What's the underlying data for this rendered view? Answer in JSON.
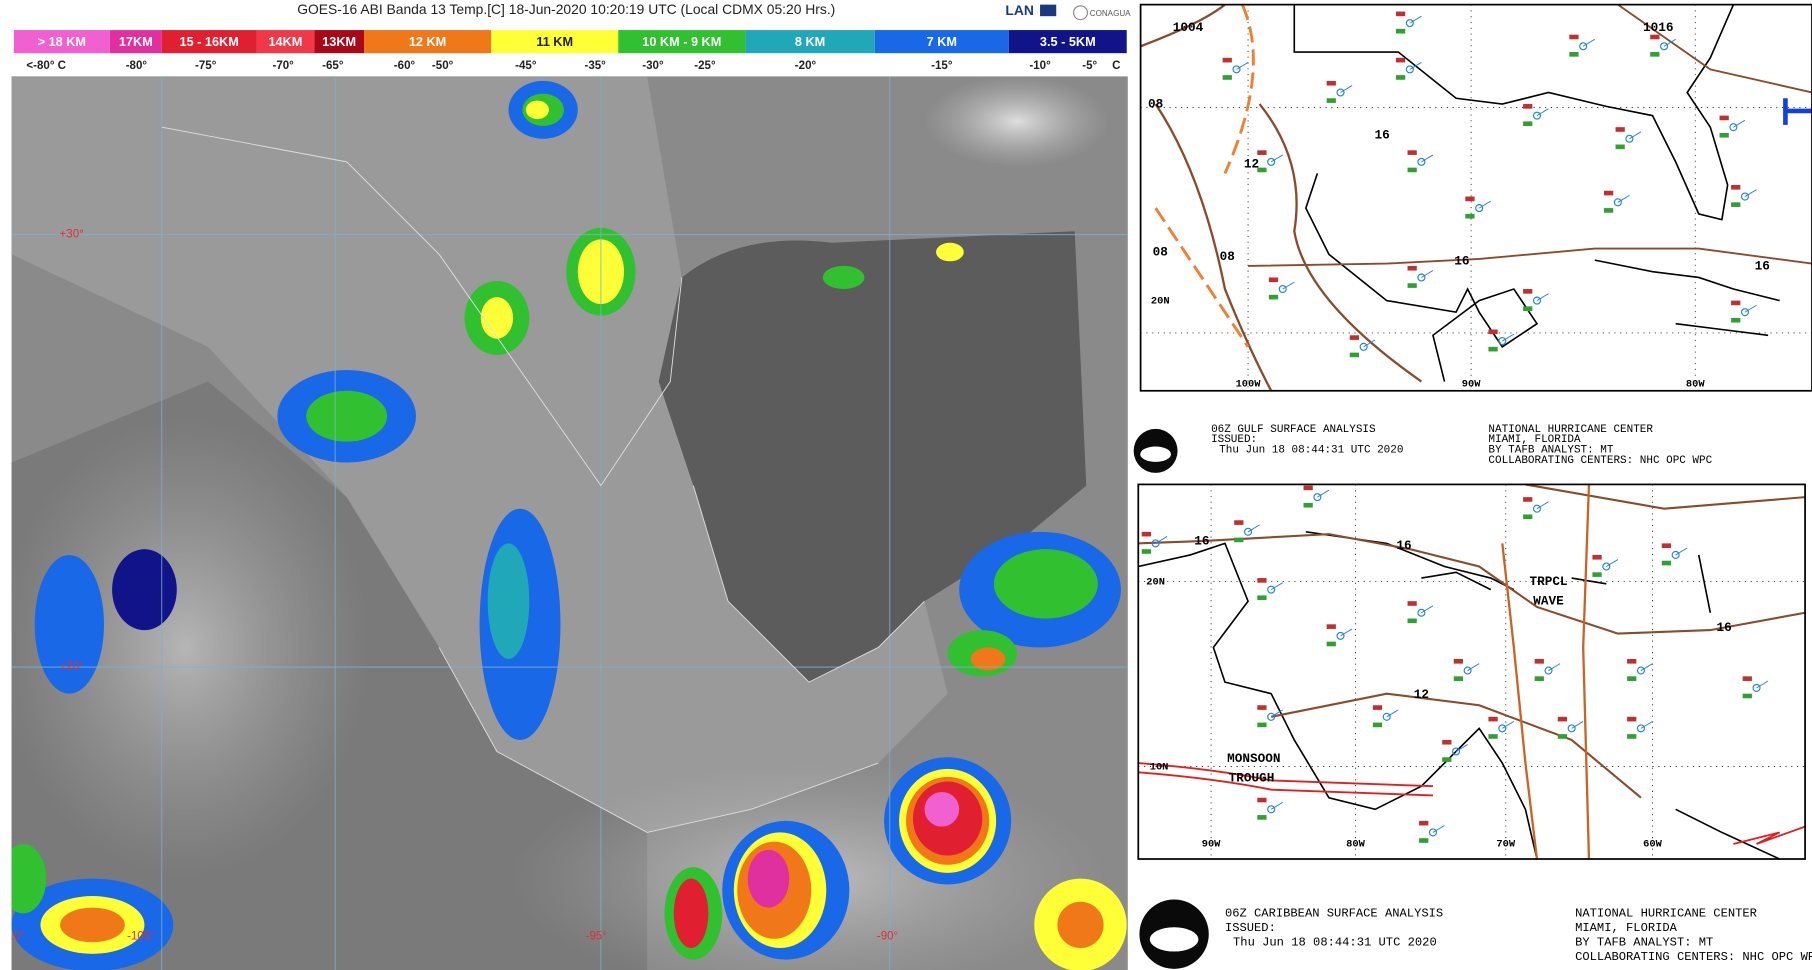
{
  "satellite": {
    "title": "GOES-16 ABI Banda 13 Temp.[C] 18-Jun-2020 10:20:19 UTC (Local CDMX  05:20 Hrs.)",
    "logo_texts": [
      "LAN",
      "CONAGUA"
    ],
    "scale": [
      {
        "label": "> 18 KM",
        "color": "#f060d0"
      },
      {
        "label": "17KM",
        "color": "#e030a0"
      },
      {
        "label": "15 - 16KM",
        "color": "#e02030"
      },
      {
        "label": "14KM",
        "color": "#f03848"
      },
      {
        "label": "13KM",
        "color": "#a80818"
      },
      {
        "label": "12 KM",
        "color": "#f07818"
      },
      {
        "label": "11 KM",
        "color": "#ffff38"
      },
      {
        "label": "10 KM - 9 KM",
        "color": "#30c030"
      },
      {
        "label": "8 KM",
        "color": "#20a8b8"
      },
      {
        "label": "7 KM",
        "color": "#1868e8"
      },
      {
        "label": "3.5 - 5KM",
        "color": "#101488"
      }
    ],
    "temps": [
      "<-80° C",
      "-80°",
      "-75°",
      "-70°",
      "-65°",
      "-60°",
      "-50°",
      "-45°",
      "-35°",
      "-30°",
      "-25°",
      "-20°",
      "-15°",
      "-10°",
      "-5°",
      "C"
    ],
    "map_labels": [
      "+30°",
      "+20°",
      "-110°",
      "-105°",
      "-95°",
      "-90°"
    ]
  },
  "gulf_map": {
    "labels": [
      "1004",
      "1016",
      "08",
      "12",
      "16",
      "08",
      "08",
      "16",
      "16",
      "20N",
      "100W",
      "90W",
      "80W"
    ],
    "caption": {
      "left": [
        "06Z GULF SURFACE ANALYSIS",
        "ISSUED:",
        "Thu Jun 18 08:44:31 UTC 2020"
      ],
      "right": [
        "NATIONAL HURRICANE CENTER",
        "MIAMI, FLORIDA",
        "BY TAFB ANALYST: MT",
        "COLLABORATING CENTERS: NHC OPC WPC"
      ]
    }
  },
  "caribbean_map": {
    "labels": [
      "16",
      "16",
      "20N",
      "TRPCL",
      "WAVE",
      "16",
      "12",
      "MONSOON",
      "TROUGH",
      "10N",
      "90W",
      "80W",
      "70W",
      "60W"
    ],
    "caption": {
      "left": [
        "06Z CARIBBEAN SURFACE ANALYSIS",
        "ISSUED:",
        "Thu Jun 18 08:44:31 UTC 2020"
      ],
      "right": [
        "NATIONAL HURRICANE CENTER",
        "MIAMI, FLORIDA",
        "BY TAFB ANALYST: MT",
        "COLLABORATING CENTERS: NHC OPC WPC"
      ]
    }
  }
}
